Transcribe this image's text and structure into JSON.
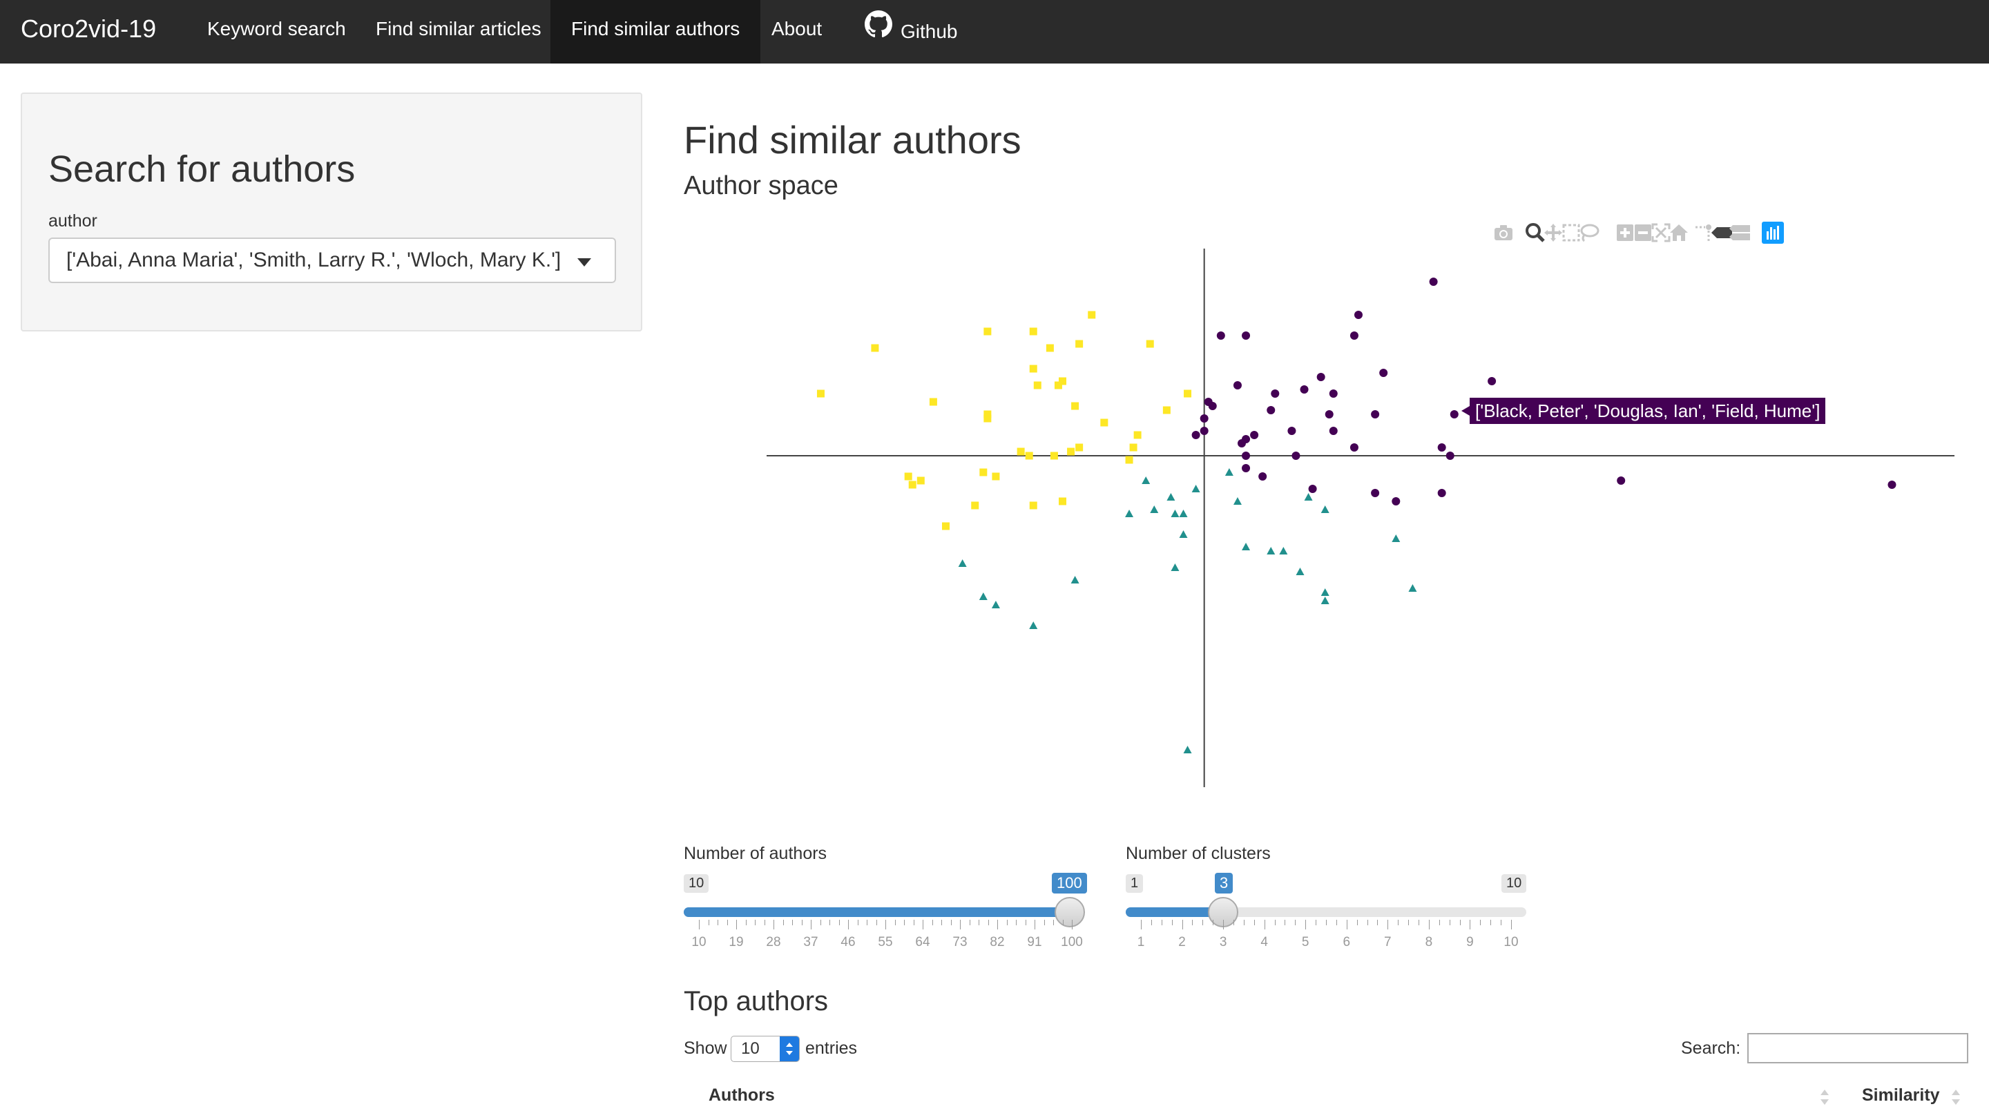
{
  "navbar": {
    "brand": "Coro2vid-19",
    "items": [
      {
        "label": "Keyword search",
        "active": false
      },
      {
        "label": "Find similar articles",
        "active": false
      },
      {
        "label": "Find similar authors",
        "active": true
      },
      {
        "label": "About",
        "active": false
      }
    ],
    "github_label": "Github"
  },
  "sidebar": {
    "title": "Search for authors",
    "field_label": "author",
    "selected_value": "['Abai, Anna Maria', 'Smith, Larry R.', 'Wloch, Mary K.']"
  },
  "main": {
    "title": "Find similar authors",
    "subtitle": "Author space"
  },
  "modebar": {
    "icons": [
      "camera-icon",
      "zoom-icon",
      "pan-icon",
      "box-select-icon",
      "lasso-select-icon",
      "zoom-in-icon",
      "zoom-out-icon",
      "autoscale-icon",
      "reset-axes-icon",
      "toggle-spike-lines-icon",
      "hover-closest-icon",
      "hover-compare-icon",
      "plotly-logo-icon"
    ]
  },
  "tooltip": {
    "text": "['Black, Peter', 'Douglas, Ian', 'Field, Hume']"
  },
  "chart_data": {
    "type": "scatter",
    "title": "",
    "xlabel": "",
    "ylabel": "",
    "xlim": [
      -10.5,
      18
    ],
    "ylim": [
      -8,
      5
    ],
    "grid": false,
    "zero_lines": true,
    "series": [
      {
        "cluster": 0,
        "marker": "circle",
        "color": "#440154",
        "points": [
          [
            5.5,
            4.2
          ],
          [
            0.4,
            2.9
          ],
          [
            1.0,
            2.9
          ],
          [
            3.7,
            3.4
          ],
          [
            3.6,
            2.9
          ],
          [
            4.3,
            2.0
          ],
          [
            2.8,
            1.9
          ],
          [
            0.8,
            1.7
          ],
          [
            1.7,
            1.5
          ],
          [
            2.4,
            1.6
          ],
          [
            3.1,
            1.5
          ],
          [
            0.1,
            1.3
          ],
          [
            0.2,
            1.2
          ],
          [
            1.6,
            1.1
          ],
          [
            3.0,
            1.0
          ],
          [
            4.1,
            1.0
          ],
          [
            0.0,
            0.9
          ],
          [
            6.9,
            1.8
          ],
          [
            6.0,
            1.0
          ],
          [
            0.0,
            0.6
          ],
          [
            1.2,
            0.5
          ],
          [
            1.0,
            0.4
          ],
          [
            2.1,
            0.6
          ],
          [
            3.1,
            0.6
          ],
          [
            0.9,
            0.3
          ],
          [
            2.2,
            0.0
          ],
          [
            3.6,
            0.2
          ],
          [
            5.7,
            0.2
          ],
          [
            5.9,
            0.0
          ],
          [
            1.0,
            0.0
          ],
          [
            -0.2,
            0.5
          ],
          [
            1.4,
            -0.5
          ],
          [
            1.0,
            -0.3
          ],
          [
            2.6,
            -0.8
          ],
          [
            4.1,
            -0.9
          ],
          [
            4.6,
            -1.1
          ],
          [
            5.7,
            -0.9
          ],
          [
            10.0,
            -0.6
          ],
          [
            16.5,
            -0.7
          ]
        ]
      },
      {
        "cluster": 1,
        "marker": "triangle",
        "color": "#21908d",
        "points": [
          [
            0.6,
            -0.4
          ],
          [
            -0.2,
            -0.8
          ],
          [
            0.8,
            -1.1
          ],
          [
            -0.8,
            -1.0
          ],
          [
            2.5,
            -1.0
          ],
          [
            2.9,
            -1.3
          ],
          [
            -1.2,
            -1.3
          ],
          [
            -0.5,
            -1.4
          ],
          [
            -0.7,
            -1.4
          ],
          [
            -1.8,
            -1.4
          ],
          [
            -0.5,
            -1.9
          ],
          [
            1.0,
            -2.2
          ],
          [
            1.6,
            -2.3
          ],
          [
            1.9,
            -2.3
          ],
          [
            4.6,
            -2.0
          ],
          [
            -0.7,
            -2.7
          ],
          [
            -5.8,
            -2.6
          ],
          [
            2.3,
            -2.8
          ],
          [
            -3.1,
            -3.0
          ],
          [
            2.9,
            -3.3
          ],
          [
            5.0,
            -3.2
          ],
          [
            2.9,
            -3.5
          ],
          [
            -5.3,
            -3.4
          ],
          [
            -5.0,
            -3.6
          ],
          [
            -4.1,
            -4.1
          ],
          [
            -0.4,
            -7.1
          ],
          [
            -1.4,
            -0.6
          ]
        ]
      },
      {
        "cluster": 2,
        "marker": "square",
        "color": "#fde725",
        "points": [
          [
            -2.7,
            3.4
          ],
          [
            -5.2,
            3.0
          ],
          [
            -4.1,
            3.0
          ],
          [
            -3.7,
            2.6
          ],
          [
            -3.0,
            2.7
          ],
          [
            -1.3,
            2.7
          ],
          [
            -7.9,
            2.6
          ],
          [
            -4.1,
            2.1
          ],
          [
            -4.0,
            1.7
          ],
          [
            -3.4,
            1.8
          ],
          [
            -3.5,
            1.7
          ],
          [
            -0.4,
            1.5
          ],
          [
            -9.2,
            1.5
          ],
          [
            -6.5,
            1.3
          ],
          [
            -3.1,
            1.2
          ],
          [
            -0.9,
            1.1
          ],
          [
            -5.2,
            1.0
          ],
          [
            -2.4,
            0.8
          ],
          [
            -5.2,
            0.9
          ],
          [
            -1.6,
            0.5
          ],
          [
            -3.2,
            0.1
          ],
          [
            -3.6,
            0.0
          ],
          [
            -4.4,
            0.1
          ],
          [
            -3.0,
            0.2
          ],
          [
            -1.7,
            0.2
          ],
          [
            -4.2,
            -0.0
          ],
          [
            -1.8,
            -0.1
          ],
          [
            -5.3,
            -0.4
          ],
          [
            -5.0,
            -0.5
          ],
          [
            -7.1,
            -0.5
          ],
          [
            -6.8,
            -0.6
          ],
          [
            -7.0,
            -0.7
          ],
          [
            -3.4,
            -1.1
          ],
          [
            -5.5,
            -1.2
          ],
          [
            -4.1,
            -1.2
          ],
          [
            -6.2,
            -1.7
          ]
        ]
      }
    ]
  },
  "sliders": {
    "authors": {
      "label": "Number of authors",
      "min": 10,
      "max": 100,
      "value": 100,
      "min_label": "10",
      "max_label": "100",
      "value_label": "100",
      "ticks": [
        "10",
        "19",
        "28",
        "37",
        "46",
        "55",
        "64",
        "73",
        "82",
        "91",
        "100"
      ]
    },
    "clusters": {
      "label": "Number of clusters",
      "min": 1,
      "max": 10,
      "value": 3,
      "min_label": "1",
      "max_label": "10",
      "value_label": "3",
      "ticks": [
        "1",
        "2",
        "3",
        "4",
        "5",
        "6",
        "7",
        "8",
        "9",
        "10"
      ]
    }
  },
  "table": {
    "title": "Top authors",
    "show_label": "Show",
    "entries_value": "10",
    "entries_label": "entries",
    "search_label": "Search:",
    "search_value": "",
    "columns": [
      "Authors",
      "Similarity"
    ]
  }
}
